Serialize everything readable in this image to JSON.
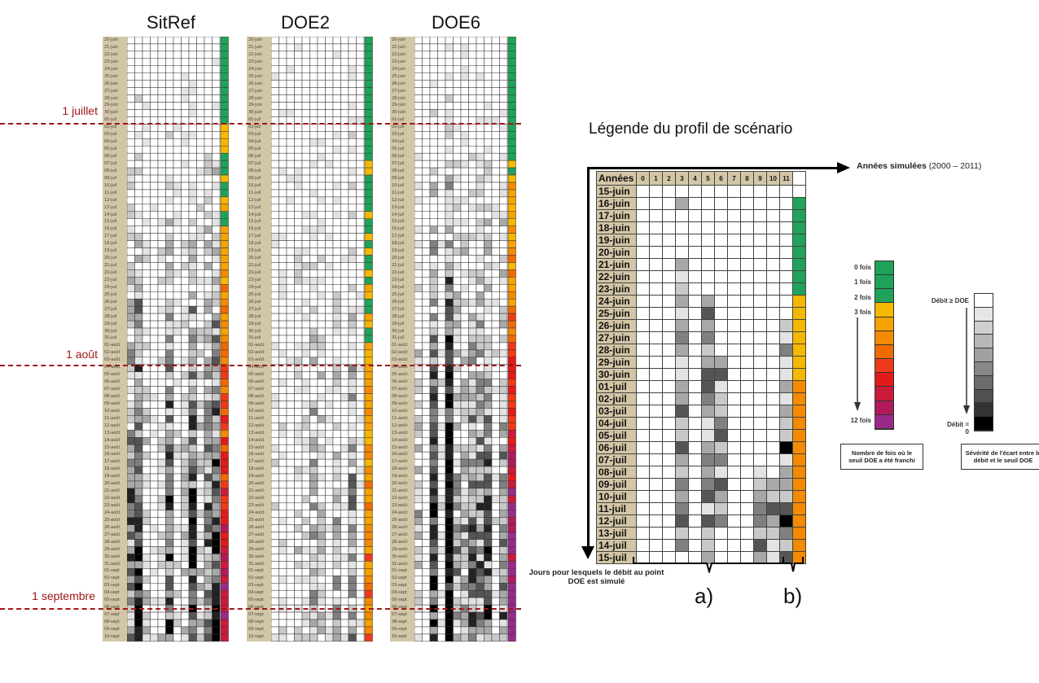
{
  "panels": [
    {
      "title": "SitRef"
    },
    {
      "title": "DOE2"
    },
    {
      "title": "DOE6"
    }
  ],
  "month_markers": [
    {
      "label": "1 juillet"
    },
    {
      "label": "1 août"
    },
    {
      "label": "1 septembre"
    }
  ],
  "main_dates": [
    "20-juin",
    "21-juin",
    "22-juin",
    "23-juin",
    "24-juin",
    "25-juin",
    "26-juin",
    "27-juin",
    "28-juin",
    "29-juin",
    "30-juin",
    "01-juil",
    "02-juil",
    "03-juil",
    "04-juil",
    "05-juil",
    "06-juil",
    "07-juil",
    "08-juil",
    "09-juil",
    "10-juil",
    "11-juil",
    "12-juil",
    "13-juil",
    "14-juil",
    "15-juil",
    "16-juil",
    "17-juil",
    "18-juil",
    "19-juil",
    "20-juil",
    "21-juil",
    "22-juil",
    "23-juil",
    "24-juil",
    "25-juil",
    "26-juil",
    "27-juil",
    "28-juil",
    "29-juil",
    "30-juil",
    "31-juil",
    "01-août",
    "02-août",
    "03-août",
    "04-août",
    "05-août",
    "06-août",
    "07-août",
    "08-août",
    "09-août",
    "10-août",
    "11-août",
    "12-août",
    "13-août",
    "14-août",
    "15-août",
    "16-août",
    "17-août",
    "18-août",
    "19-août",
    "20-août",
    "21-août",
    "22-août",
    "23-août",
    "24-août",
    "25-août",
    "26-août",
    "27-août",
    "28-août",
    "29-août",
    "30-août",
    "31-août",
    "01-sept",
    "02-sept",
    "03-sept",
    "04-sept",
    "05-sept",
    "06-sept",
    "07-sept",
    "08-sept",
    "09-sept",
    "10-sept"
  ],
  "legend": {
    "title": "Légende du profil de scénario",
    "header_label": "Années",
    "year_cols": [
      "0",
      "1",
      "2",
      "3",
      "4",
      "5",
      "6",
      "7",
      "8",
      "9",
      "10",
      "11"
    ],
    "dates": [
      "15-juin",
      "16-juin",
      "17-juin",
      "18-juin",
      "19-juin",
      "20-juin",
      "21-juin",
      "22-juin",
      "23-juin",
      "24-juin",
      "25-juin",
      "26-juin",
      "27-juin",
      "28-juin",
      "29-juin",
      "30-juin",
      "01-juil",
      "02-juil",
      "03-juil",
      "04-juil",
      "05-juil",
      "06-juil",
      "07-juil",
      "08-juil",
      "09-juil",
      "10-juil",
      "11-juil",
      "12-juil",
      "13-juil",
      "14-juil",
      "15-juil"
    ],
    "x_axis_bold": "Années simulées",
    "x_axis_rest": " (2000 – 2011)",
    "y_axis_label": "Jours pour lesquels le débit au point DOE est simulé",
    "label_a": "a)",
    "label_b": "b)"
  },
  "count_scale": {
    "labels": [
      "0 fois",
      "1 fois",
      "2 fois",
      "3 fois",
      "12 fois"
    ],
    "caption": "Nombre de fois où le seuil DOE a été franchi",
    "colors": [
      "#1fa35a",
      "#1fa35a",
      "#1fa35a",
      "#f5b800",
      "#f5a300",
      "#f38a00",
      "#f06a00",
      "#ee3a1a",
      "#e31a1a",
      "#cc1a3a",
      "#b01a5a",
      "#9a2a8a"
    ]
  },
  "severity_scale": {
    "top": "Débit ≥ DOE",
    "bottom": "Débit = 0",
    "caption": "Sévérité de l'écart entre le débit et le seuil DOE",
    "shades": [
      "#ffffff",
      "#e6e6e6",
      "#cfcfcf",
      "#b8b8b8",
      "#a0a0a0",
      "#888888",
      "#6c6c6c",
      "#505050",
      "#333333",
      "#000000"
    ]
  }
}
